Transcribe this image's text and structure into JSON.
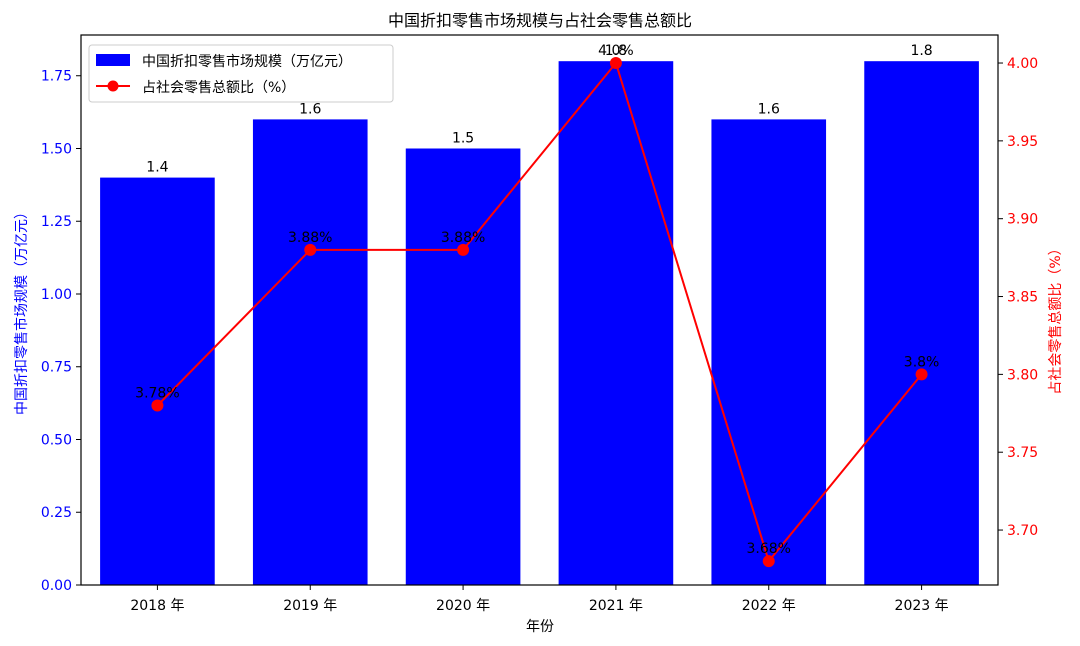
{
  "chart_data": {
    "type": "bar+line",
    "title": "中国折扣零售市场规模与占社会零售总额比",
    "xlabel": "年份",
    "categories": [
      "2018 年",
      "2019 年",
      "2020 年",
      "2021 年",
      "2022 年",
      "2023 年"
    ],
    "series": [
      {
        "name": "中国折扣零售市场规模（万亿元）",
        "type": "bar",
        "axis": "left",
        "color": "#0000ff",
        "values": [
          1.4,
          1.6,
          1.5,
          1.8,
          1.6,
          1.8
        ],
        "labels": [
          "1.4",
          "1.6",
          "1.5",
          "1.8",
          "1.6",
          "1.8"
        ]
      },
      {
        "name": "占社会零售总额比（%）",
        "type": "line",
        "axis": "right",
        "color": "#ff0000",
        "marker": "circle",
        "values": [
          3.78,
          3.88,
          3.88,
          4.0,
          3.68,
          3.8
        ],
        "labels": [
          "3.78%",
          "3.88%",
          "3.88%",
          "4.0%",
          "3.68%",
          "3.8%"
        ]
      }
    ],
    "ylabel_left": "中国折扣零售市场规模（万亿元）",
    "ylabel_right": "占社会零售总额比（%）",
    "ylim_left": [
      0,
      1.89
    ],
    "ylim_right": [
      3.6647,
      4.018
    ],
    "yticks_left": [
      "0.00",
      "0.25",
      "0.50",
      "0.75",
      "1.00",
      "1.25",
      "1.50",
      "1.75"
    ],
    "yticks_right": [
      "3.70",
      "3.75",
      "3.80",
      "3.85",
      "3.90",
      "3.95",
      "4.00"
    ],
    "grid": false,
    "legend_position": "upper left"
  }
}
